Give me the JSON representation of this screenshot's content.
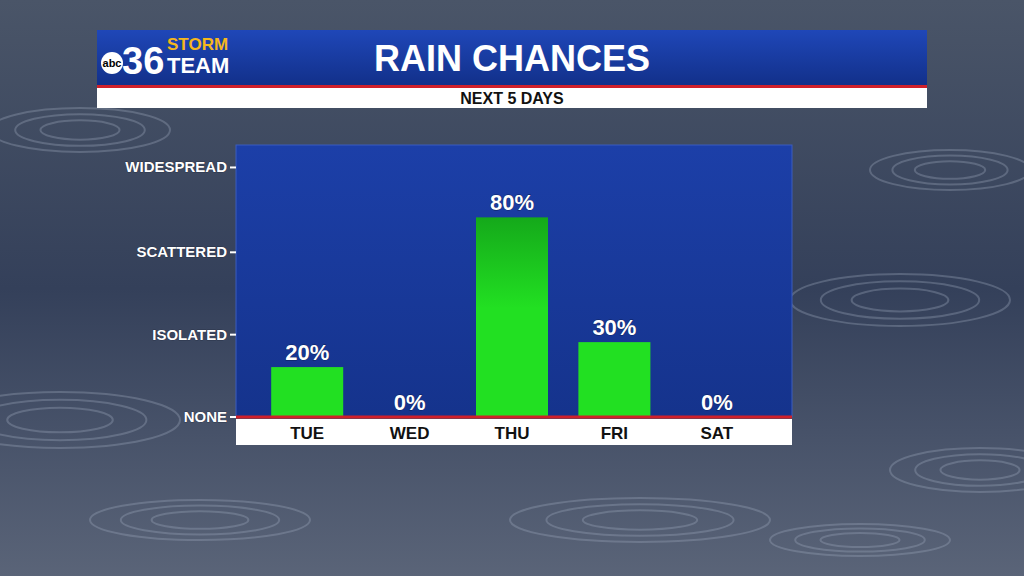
{
  "chart_data": {
    "type": "bar",
    "title": "RAIN CHANCES",
    "subtitle": "NEXT 5 DAYS",
    "logo": {
      "network": "abc",
      "channel": "36",
      "line1": "STORM",
      "line2": "TEAM"
    },
    "categories": [
      "TUE",
      "WED",
      "THU",
      "FRI",
      "SAT"
    ],
    "values": [
      20,
      0,
      80,
      30,
      0
    ],
    "value_labels": [
      "20%",
      "0%",
      "80%",
      "30%",
      "0%"
    ],
    "color": "#22e022",
    "ylim": [
      0,
      109
    ],
    "yticks": [
      {
        "value": 0,
        "label": "NONE"
      },
      {
        "value": 33,
        "label": "ISOLATED"
      },
      {
        "value": 66,
        "label": "SCATTERED"
      },
      {
        "value": 100,
        "label": "WIDESPREAD"
      }
    ],
    "data_labels": true,
    "grid": false
  }
}
